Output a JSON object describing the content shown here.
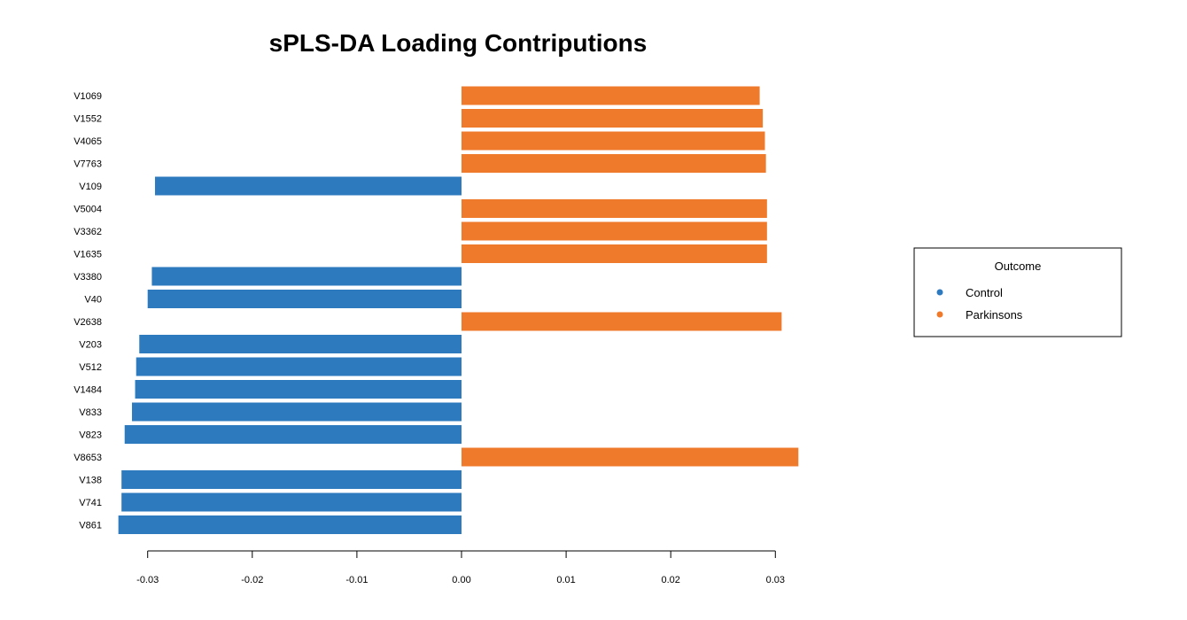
{
  "chart_data": {
    "type": "bar",
    "orientation": "horizontal",
    "title": "sPLS-DA Loading Contriputions",
    "xlabel": "",
    "ylabel": "",
    "xlim": [
      -0.0335,
      0.034
    ],
    "xticks": [
      -0.03,
      -0.02,
      -0.01,
      0.0,
      0.01,
      0.02,
      0.03
    ],
    "xtick_labels": [
      "-0.03",
      "-0.02",
      "-0.01",
      "0.00",
      "0.01",
      "0.02",
      "0.03"
    ],
    "grid": false,
    "categories": [
      "V1069",
      "V1552",
      "V4065",
      "V7763",
      "V109",
      "V5004",
      "V3362",
      "V1635",
      "V3380",
      "V40",
      "V2638",
      "V203",
      "V512",
      "V1484",
      "V833",
      "V823",
      "V8653",
      "V138",
      "V741",
      "V861"
    ],
    "values": [
      0.0285,
      0.0288,
      0.029,
      0.0291,
      -0.0293,
      0.0292,
      0.0292,
      0.0292,
      -0.0296,
      -0.03,
      0.0306,
      -0.0308,
      -0.0311,
      -0.0312,
      -0.0315,
      -0.0322,
      0.0322,
      -0.0325,
      -0.0325,
      -0.0328
    ],
    "groups": [
      "Parkinsons",
      "Parkinsons",
      "Parkinsons",
      "Parkinsons",
      "Control",
      "Parkinsons",
      "Parkinsons",
      "Parkinsons",
      "Control",
      "Control",
      "Parkinsons",
      "Control",
      "Control",
      "Control",
      "Control",
      "Control",
      "Parkinsons",
      "Control",
      "Control",
      "Control"
    ],
    "legend": {
      "title": "Outcome",
      "position": "right",
      "entries": [
        {
          "name": "Control",
          "color": "#2e7abf"
        },
        {
          "name": "Parkinsons",
          "color": "#f07a2c"
        }
      ]
    },
    "colors": {
      "Control": "#2e7abf",
      "Parkinsons": "#f07a2c"
    }
  }
}
